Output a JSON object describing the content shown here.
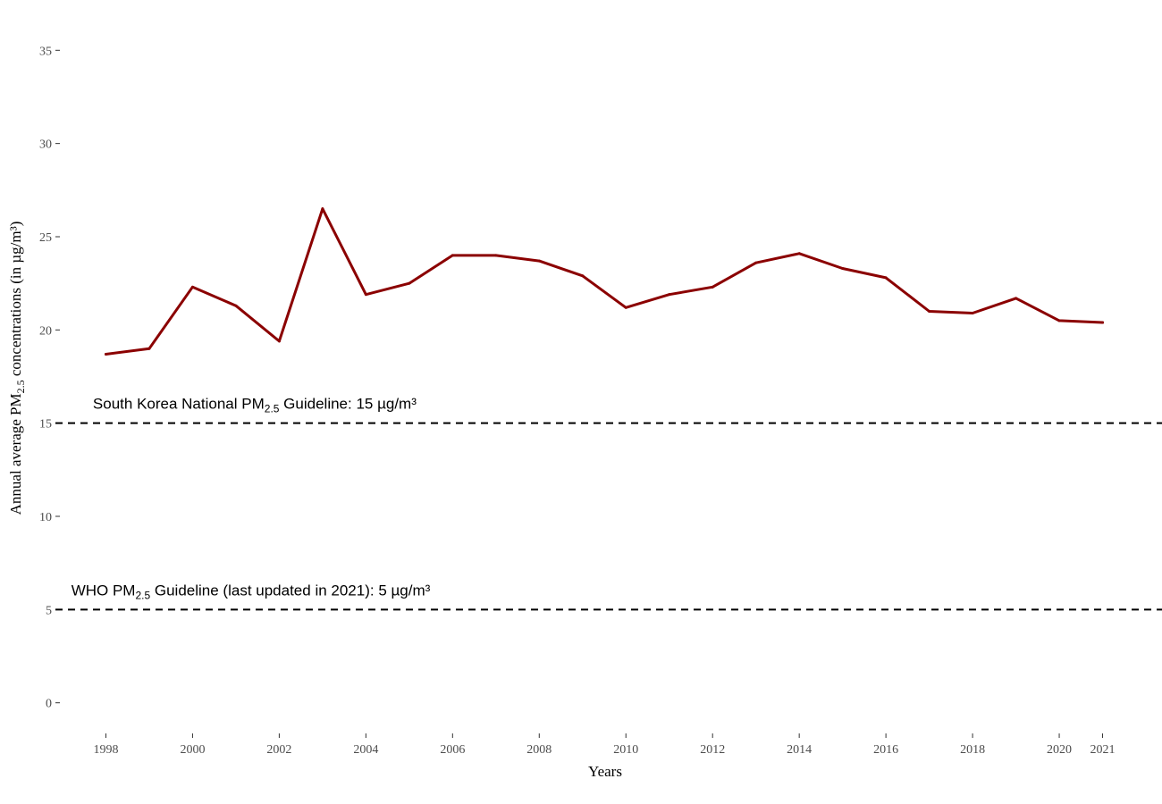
{
  "chart_data": {
    "type": "line",
    "xlabel": "Years",
    "ylabel": {
      "prefix": "Annual average PM",
      "subscript": "2.5",
      "suffix": " concentrations (in µg/m³)"
    },
    "x_ticks": [
      "1998",
      "2000",
      "2002",
      "2004",
      "2006",
      "2008",
      "2010",
      "2012",
      "2014",
      "2016",
      "2018",
      "2020",
      "2021"
    ],
    "y_ticks": [
      "0",
      "5",
      "10",
      "15",
      "20",
      "25",
      "30",
      "35"
    ],
    "xlim": [
      1997,
      2022
    ],
    "ylim": [
      -1.5,
      36.5
    ],
    "grid": false,
    "line_color": "#8b0000",
    "x": [
      1998,
      1999,
      2000,
      2001,
      2002,
      2003,
      2004,
      2005,
      2006,
      2007,
      2008,
      2009,
      2010,
      2011,
      2012,
      2013,
      2014,
      2015,
      2016,
      2017,
      2018,
      2019,
      2020,
      2021
    ],
    "values": [
      18.7,
      19.0,
      22.3,
      21.3,
      19.4,
      26.5,
      21.9,
      22.5,
      24.0,
      24.0,
      23.7,
      22.9,
      21.2,
      21.9,
      22.3,
      23.6,
      24.1,
      23.3,
      22.8,
      21.0,
      20.9,
      21.7,
      20.5,
      20.4
    ],
    "reference_lines": [
      {
        "y": 15,
        "label_prefix": "South Korea National PM",
        "label_sub": "2.5",
        "label_suffix": " Guideline: 15 µg/m³"
      },
      {
        "y": 5,
        "label_prefix": "WHO  PM",
        "label_sub": "2.5",
        "label_suffix": " Guideline (last updated in 2021): 5 µg/m³"
      }
    ]
  }
}
